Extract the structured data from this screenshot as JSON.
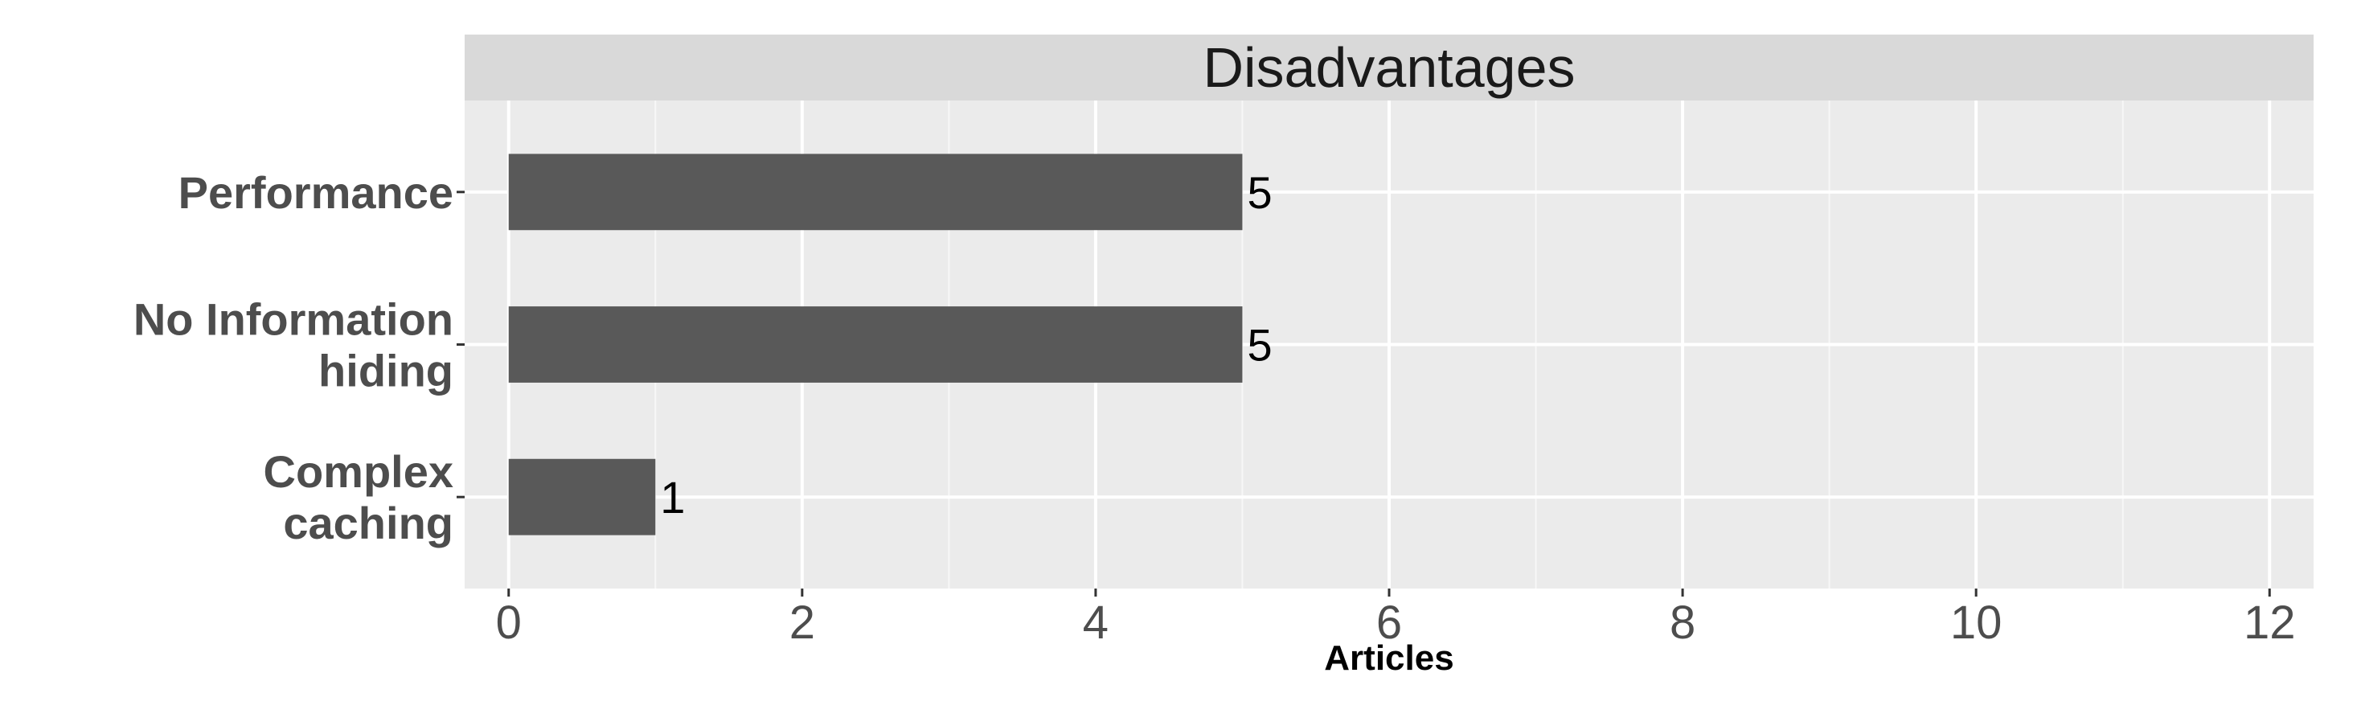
{
  "chart_data": {
    "type": "bar",
    "orientation": "horizontal",
    "title": "Disadvantages",
    "categories": [
      "Performance",
      "No Information hiding",
      "Complex caching"
    ],
    "category_lines": [
      [
        "Performance"
      ],
      [
        "No Information",
        "hiding"
      ],
      [
        "Complex",
        "caching"
      ]
    ],
    "values": [
      5,
      5,
      1
    ],
    "data_labels": [
      "5",
      "5",
      "1"
    ],
    "xlabel": "Articles",
    "ylabel": "",
    "xlim": [
      -0.3,
      12.3
    ],
    "xticks": [
      0,
      2,
      4,
      6,
      8,
      10,
      12
    ],
    "grid": true,
    "legend": "none",
    "colors": {
      "bar": "#595959",
      "panel": "#ebebeb",
      "strip": "#d9d9d9",
      "grid": "#ffffff"
    }
  }
}
